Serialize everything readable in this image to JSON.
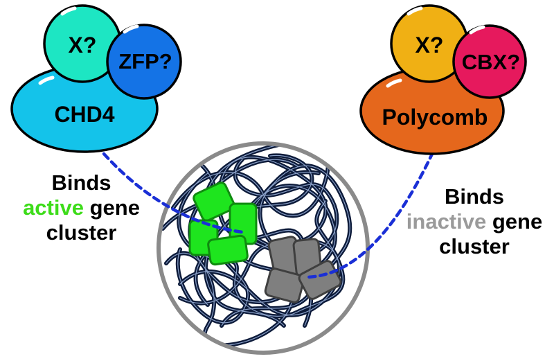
{
  "left_complex": {
    "base_label": "CHD4",
    "top_left_label": "X?",
    "top_right_label": "ZFP?",
    "colors": {
      "base": "#14c3ea",
      "top_left": "#1de6c3",
      "top_right": "#1473e6"
    }
  },
  "right_complex": {
    "base_label": "Polycomb",
    "top_left_label": "X?",
    "top_right_label": "CBX?",
    "colors": {
      "base": "#e5671c",
      "top_left": "#f0b014",
      "top_right": "#e6195d"
    }
  },
  "left_caption": {
    "line1": "Binds",
    "highlight": "active",
    "rest": " gene",
    "line3": "cluster",
    "highlight_color": "#3ddc1a"
  },
  "right_caption": {
    "line1": "Binds",
    "highlight": "inactive",
    "rest": " gene",
    "line3": "cluster",
    "highlight_color": "#9a9a9a"
  },
  "nucleus": {
    "active_cluster_color": "#1ee51e",
    "inactive_cluster_color": "#7f7f7f",
    "tether_color": "#1a2fd6"
  }
}
